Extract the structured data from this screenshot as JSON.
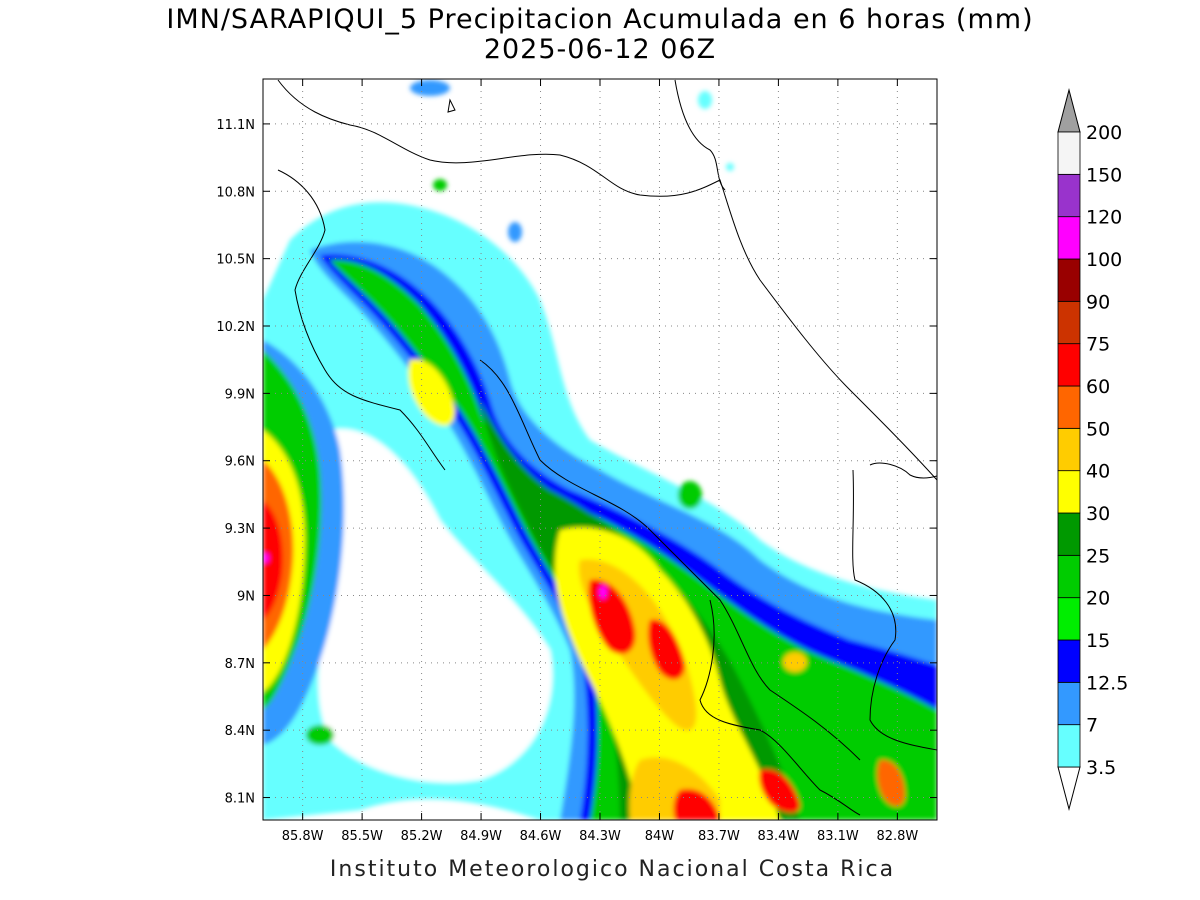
{
  "title": {
    "line1": "IMN/SARAPIQUI_5 Precipitacion Acumulada en 6 horas (mm)",
    "line2": "2025-06-12 06Z"
  },
  "footer": "Instituto Meteorologico Nacional Costa Rica",
  "map": {
    "lon_range": [
      -86.0,
      -82.6
    ],
    "lat_range": [
      8.0,
      11.3
    ],
    "lon_ticks": [
      {
        "value": -85.8,
        "label": "85.8W"
      },
      {
        "value": -85.5,
        "label": "85.5W"
      },
      {
        "value": -85.2,
        "label": "85.2W"
      },
      {
        "value": -84.9,
        "label": "84.9W"
      },
      {
        "value": -84.6,
        "label": "84.6W"
      },
      {
        "value": -84.3,
        "label": "84.3W"
      },
      {
        "value": -84.0,
        "label": "84W"
      },
      {
        "value": -83.7,
        "label": "83.7W"
      },
      {
        "value": -83.4,
        "label": "83.4W"
      },
      {
        "value": -83.1,
        "label": "83.1W"
      },
      {
        "value": -82.8,
        "label": "82.8W"
      }
    ],
    "lat_ticks": [
      {
        "value": 8.1,
        "label": "8.1N"
      },
      {
        "value": 8.4,
        "label": "8.4N"
      },
      {
        "value": 8.7,
        "label": "8.7N"
      },
      {
        "value": 9.0,
        "label": "9N"
      },
      {
        "value": 9.3,
        "label": "9.3N"
      },
      {
        "value": 9.6,
        "label": "9.6N"
      },
      {
        "value": 9.9,
        "label": "9.9N"
      },
      {
        "value": 10.2,
        "label": "10.2N"
      },
      {
        "value": 10.5,
        "label": "10.5N"
      },
      {
        "value": 10.8,
        "label": "10.8N"
      },
      {
        "value": 11.1,
        "label": "11.1N"
      }
    ],
    "grid": true
  },
  "colorbar": {
    "levels": [
      "3.5",
      "7",
      "12.5",
      "15",
      "20",
      "25",
      "30",
      "40",
      "50",
      "60",
      "75",
      "90",
      "100",
      "120",
      "150",
      "200"
    ],
    "colors": [
      "#66ffff",
      "#3399ff",
      "#0000ff",
      "#00ee00",
      "#00cc00",
      "#009900",
      "#ffff00",
      "#ffcc00",
      "#ff6600",
      "#ff0000",
      "#cc3300",
      "#990000",
      "#ff00ff",
      "#9933cc",
      "#f5f5f5"
    ],
    "over_color": "#a0a0a0",
    "under_color": "#ffffff"
  }
}
